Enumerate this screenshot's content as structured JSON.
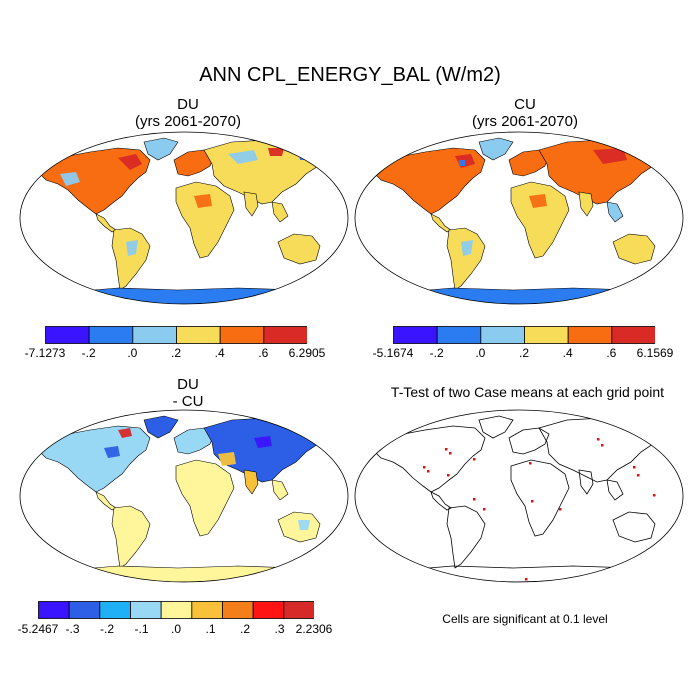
{
  "figure": {
    "title": "ANN CPL_ENERGY_BAL (W/m2)"
  },
  "panels": [
    {
      "id": "du",
      "title_line1": "DU",
      "title_line2": "(yrs 2061-2070)",
      "colorbar": {
        "colors": [
          "#3a14ff",
          "#2b7cf0",
          "#8ccbf0",
          "#f7dc5a",
          "#f86c12",
          "#d92a25"
        ],
        "labels": [
          "-7.1273",
          "-.2",
          ".0",
          ".2",
          ".4",
          ".6",
          "6.2905"
        ]
      }
    },
    {
      "id": "cu",
      "title_line1": "CU",
      "title_line2": "(yrs 2061-2070)",
      "colorbar": {
        "colors": [
          "#3a14ff",
          "#2b7cf0",
          "#8ccbf0",
          "#f7dc5a",
          "#f86c12",
          "#d92a25"
        ],
        "labels": [
          "-5.1674",
          "-.2",
          ".0",
          ".2",
          ".4",
          ".6",
          "6.1569"
        ]
      }
    },
    {
      "id": "diff",
      "title_line1": "DU",
      "title_line2": "- CU",
      "colorbar": {
        "colors": [
          "#3a14ff",
          "#2d5fe6",
          "#1fb0f5",
          "#99d8f5",
          "#fff59a",
          "#f7c23a",
          "#f47e1a",
          "#ff1414",
          "#d62a28"
        ],
        "labels": [
          "-5.2467",
          "-.3",
          "-.2",
          "-.1",
          ".0",
          ".1",
          ".2",
          ".3",
          "2.2306"
        ]
      }
    },
    {
      "id": "ttest",
      "title_line1": "T-Test of two Case means at each grid point",
      "note": "Cells are significant at 0.1 level"
    }
  ]
}
